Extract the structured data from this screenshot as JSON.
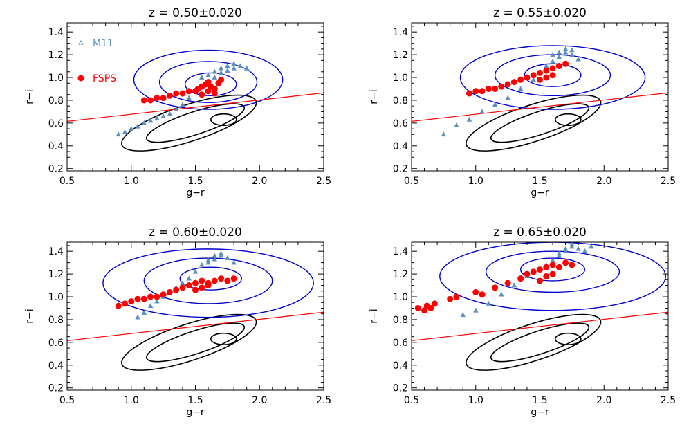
{
  "figure": {
    "legend": [
      {
        "label": "M11",
        "marker": "triangle",
        "color": "#5b8fbf"
      },
      {
        "label": "FSPS",
        "marker": "circle",
        "color": "#ff0000"
      }
    ]
  },
  "colors": {
    "m11": "#5b8fbf",
    "fsps": "#ff0000",
    "contour_red": "#0000cc",
    "contour_blue": "#000000",
    "line": "#ff0000"
  },
  "chart_data": [
    {
      "type": "scatter",
      "title": "z  =  0.50±0.020",
      "xlabel": "g−r",
      "ylabel": "r−i",
      "xlim": [
        0.5,
        2.5
      ],
      "ylim": [
        0.18,
        1.48
      ],
      "xticks": [
        "0.5",
        "1.0",
        "1.5",
        "2.0",
        "2.5"
      ],
      "yticks": [
        "0.2",
        "0.4",
        "0.6",
        "0.8",
        "1.0",
        "1.2",
        "1.4"
      ],
      "show_legend": true,
      "line": {
        "x": [
          0.5,
          2.5
        ],
        "y": [
          0.615,
          0.865
        ]
      },
      "m11": {
        "x": [
          0.9,
          0.95,
          1.0,
          1.05,
          1.1,
          1.15,
          1.2,
          1.25,
          1.3,
          1.35,
          1.4,
          1.45,
          1.5,
          1.55,
          1.6,
          1.65,
          1.7,
          1.75,
          1.8,
          1.85,
          1.9,
          1.55,
          1.6,
          1.65,
          1.7,
          1.75,
          1.8
        ],
        "y": [
          0.5,
          0.52,
          0.55,
          0.57,
          0.6,
          0.62,
          0.64,
          0.66,
          0.68,
          0.72,
          0.76,
          0.82,
          0.88,
          0.92,
          0.96,
          1.0,
          1.04,
          1.06,
          1.08,
          1.1,
          1.08,
          1.0,
          1.02,
          1.05,
          1.08,
          1.1,
          1.12
        ]
      },
      "fsps": {
        "x": [
          1.1,
          1.15,
          1.2,
          1.25,
          1.3,
          1.35,
          1.4,
          1.45,
          1.5,
          1.52,
          1.55,
          1.58,
          1.6,
          1.62,
          1.65,
          1.68,
          1.7,
          1.55,
          1.6,
          1.65
        ],
        "y": [
          0.8,
          0.8,
          0.82,
          0.82,
          0.84,
          0.86,
          0.86,
          0.88,
          0.88,
          0.9,
          0.92,
          0.94,
          0.96,
          0.92,
          0.9,
          0.95,
          0.98,
          0.85,
          0.88,
          0.86
        ]
      },
      "contours_red": [
        {
          "cx": 1.6,
          "cy": 0.98,
          "rx": 0.58,
          "ry": 0.26
        },
        {
          "cx": 1.6,
          "cy": 0.96,
          "rx": 0.38,
          "ry": 0.18
        },
        {
          "cx": 1.62,
          "cy": 0.94,
          "rx": 0.2,
          "ry": 0.1
        }
      ],
      "contours_blue": [
        {
          "cx": 1.45,
          "cy": 0.6,
          "rx": 0.55,
          "ry": 0.16,
          "rot": -18
        },
        {
          "cx": 1.5,
          "cy": 0.6,
          "rx": 0.4,
          "ry": 0.1,
          "rot": -18
        },
        {
          "cx": 1.72,
          "cy": 0.63,
          "rx": 0.1,
          "ry": 0.05,
          "rot": 0
        }
      ]
    },
    {
      "type": "scatter",
      "title": "z  =  0.55±0.020",
      "xlabel": "g−r",
      "ylabel": "r−i",
      "xlim": [
        0.5,
        2.5
      ],
      "ylim": [
        0.18,
        1.48
      ],
      "xticks": [
        "0.5",
        "1.0",
        "1.5",
        "2.0",
        "2.5"
      ],
      "yticks": [
        "0.2",
        "0.4",
        "0.6",
        "0.8",
        "1.0",
        "1.2",
        "1.4"
      ],
      "show_legend": false,
      "line": {
        "x": [
          0.5,
          2.5
        ],
        "y": [
          0.615,
          0.865
        ]
      },
      "m11": {
        "x": [
          0.75,
          0.85,
          0.95,
          1.05,
          1.15,
          1.25,
          1.35,
          1.45,
          1.5,
          1.55,
          1.6,
          1.65,
          1.7,
          1.75,
          1.8,
          1.6,
          1.65,
          1.7,
          1.75
        ],
        "y": [
          0.5,
          0.58,
          0.63,
          0.7,
          0.76,
          0.82,
          0.9,
          0.98,
          1.04,
          1.1,
          1.14,
          1.18,
          1.22,
          1.2,
          1.16,
          1.2,
          1.22,
          1.25,
          1.24
        ]
      },
      "fsps": {
        "x": [
          0.95,
          1.0,
          1.05,
          1.1,
          1.15,
          1.2,
          1.25,
          1.3,
          1.35,
          1.4,
          1.45,
          1.5,
          1.55,
          1.6,
          1.65,
          1.7,
          1.5,
          1.55,
          1.6
        ],
        "y": [
          0.86,
          0.88,
          0.88,
          0.9,
          0.9,
          0.92,
          0.94,
          0.96,
          0.98,
          1.0,
          1.02,
          1.04,
          1.06,
          1.08,
          1.1,
          1.12,
          0.98,
          1.0,
          1.02
        ]
      },
      "contours_red": [
        {
          "cx": 1.6,
          "cy": 1.0,
          "rx": 0.72,
          "ry": 0.28
        },
        {
          "cx": 1.6,
          "cy": 1.02,
          "rx": 0.45,
          "ry": 0.18
        },
        {
          "cx": 1.6,
          "cy": 1.02,
          "rx": 0.22,
          "ry": 0.1
        }
      ],
      "contours_blue": [
        {
          "cx": 1.45,
          "cy": 0.6,
          "rx": 0.55,
          "ry": 0.16,
          "rot": -18
        },
        {
          "cx": 1.5,
          "cy": 0.6,
          "rx": 0.4,
          "ry": 0.1,
          "rot": -18
        },
        {
          "cx": 1.72,
          "cy": 0.63,
          "rx": 0.1,
          "ry": 0.05,
          "rot": 0
        }
      ]
    },
    {
      "type": "scatter",
      "title": "z  =  0.60±0.020",
      "xlabel": "g−r",
      "ylabel": "r−i",
      "xlim": [
        0.5,
        2.5
      ],
      "ylim": [
        0.18,
        1.48
      ],
      "xticks": [
        "0.5",
        "1.0",
        "1.5",
        "2.0",
        "2.5"
      ],
      "yticks": [
        "0.2",
        "0.4",
        "0.6",
        "0.8",
        "1.0",
        "1.2",
        "1.4"
      ],
      "show_legend": false,
      "line": {
        "x": [
          0.5,
          2.5
        ],
        "y": [
          0.615,
          0.865
        ]
      },
      "m11": {
        "x": [
          1.05,
          1.1,
          1.15,
          1.2,
          1.25,
          1.3,
          1.35,
          1.4,
          1.45,
          1.5,
          1.55,
          1.6,
          1.65,
          1.7,
          1.75,
          1.8,
          1.6,
          1.65,
          1.7
        ],
        "y": [
          0.82,
          0.86,
          0.92,
          0.96,
          1.0,
          1.04,
          1.08,
          1.12,
          1.16,
          1.22,
          1.28,
          1.32,
          1.36,
          1.38,
          1.34,
          1.3,
          1.3,
          1.33,
          1.36
        ]
      },
      "fsps": {
        "x": [
          0.9,
          0.95,
          1.0,
          1.05,
          1.1,
          1.15,
          1.2,
          1.25,
          1.3,
          1.35,
          1.4,
          1.45,
          1.5,
          1.55,
          1.6,
          1.65,
          1.7,
          1.75,
          1.8,
          1.5,
          1.55,
          1.6
        ],
        "y": [
          0.92,
          0.94,
          0.96,
          0.98,
          0.98,
          1.0,
          1.0,
          1.02,
          1.04,
          1.06,
          1.08,
          1.1,
          1.12,
          1.14,
          1.12,
          1.14,
          1.16,
          1.14,
          1.16,
          1.06,
          1.08,
          1.1
        ]
      },
      "contours_red": [
        {
          "cx": 1.6,
          "cy": 1.12,
          "rx": 0.82,
          "ry": 0.3
        },
        {
          "cx": 1.6,
          "cy": 1.14,
          "rx": 0.5,
          "ry": 0.2
        },
        {
          "cx": 1.62,
          "cy": 1.16,
          "rx": 0.24,
          "ry": 0.1
        }
      ],
      "contours_blue": [
        {
          "cx": 1.45,
          "cy": 0.6,
          "rx": 0.55,
          "ry": 0.16,
          "rot": -18
        },
        {
          "cx": 1.5,
          "cy": 0.6,
          "rx": 0.4,
          "ry": 0.1,
          "rot": -18
        },
        {
          "cx": 1.72,
          "cy": 0.63,
          "rx": 0.1,
          "ry": 0.05,
          "rot": 0
        }
      ]
    },
    {
      "type": "scatter",
      "title": "z  =  0.65±0.020",
      "xlabel": "g−r",
      "ylabel": "r−i",
      "xlim": [
        0.5,
        2.5
      ],
      "ylim": [
        0.18,
        1.48
      ],
      "xticks": [
        "0.5",
        "1.0",
        "1.5",
        "2.0",
        "2.5"
      ],
      "yticks": [
        "0.2",
        "0.4",
        "0.6",
        "0.8",
        "1.0",
        "1.2",
        "1.4"
      ],
      "show_legend": false,
      "line": {
        "x": [
          0.5,
          2.5
        ],
        "y": [
          0.615,
          0.865
        ]
      },
      "m11": {
        "x": [
          0.9,
          1.0,
          1.1,
          1.2,
          1.3,
          1.4,
          1.5,
          1.55,
          1.6,
          1.65,
          1.7,
          1.75,
          1.8,
          1.85,
          1.9,
          1.65,
          1.7,
          1.75
        ],
        "y": [
          0.84,
          0.88,
          0.94,
          1.02,
          1.1,
          1.18,
          1.24,
          1.28,
          1.32,
          1.36,
          1.4,
          1.44,
          1.42,
          1.4,
          1.44,
          1.38,
          1.42,
          1.46
        ]
      },
      "fsps": {
        "x": [
          0.55,
          0.6,
          0.62,
          0.65,
          0.68,
          0.8,
          0.85,
          1.0,
          1.05,
          1.15,
          1.25,
          1.35,
          1.4,
          1.45,
          1.5,
          1.55,
          1.6,
          1.65,
          1.7,
          1.75,
          1.5,
          1.55,
          1.6
        ],
        "y": [
          0.9,
          0.88,
          0.92,
          0.9,
          0.94,
          0.98,
          1.0,
          1.04,
          1.02,
          1.08,
          1.12,
          1.16,
          1.2,
          1.22,
          1.24,
          1.26,
          1.28,
          1.26,
          1.3,
          1.28,
          1.14,
          1.18,
          1.2
        ]
      },
      "contours_red": [
        {
          "cx": 1.6,
          "cy": 1.18,
          "rx": 0.88,
          "ry": 0.3
        },
        {
          "cx": 1.6,
          "cy": 1.22,
          "rx": 0.52,
          "ry": 0.18
        },
        {
          "cx": 1.6,
          "cy": 1.24,
          "rx": 0.25,
          "ry": 0.1
        }
      ],
      "contours_blue": [
        {
          "cx": 1.45,
          "cy": 0.6,
          "rx": 0.55,
          "ry": 0.16,
          "rot": -18
        },
        {
          "cx": 1.5,
          "cy": 0.6,
          "rx": 0.4,
          "ry": 0.1,
          "rot": -18
        },
        {
          "cx": 1.72,
          "cy": 0.63,
          "rx": 0.1,
          "ry": 0.05,
          "rot": 0
        }
      ]
    }
  ]
}
